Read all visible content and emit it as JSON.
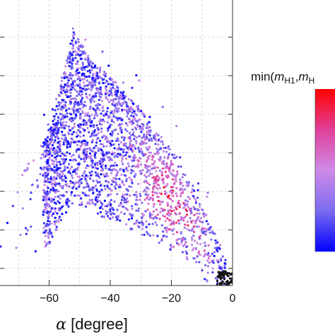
{
  "chart_data": {
    "type": "scatter",
    "xlabel_symbol": "α",
    "xlabel_unit": " [degree]",
    "ylabel": "",
    "xlim": [
      -80,
      0
    ],
    "x_ticks": [
      -60,
      -40,
      -20,
      0
    ],
    "x_tick_labels": [
      "−60",
      "−40",
      "−20",
      "0"
    ],
    "grid": true,
    "colorbar": {
      "title_prefix": "min(",
      "title_var1": "m",
      "title_sub1": "H1",
      "title_sep": ",",
      "title_var2": "m",
      "title_sub2": "H",
      "colors": [
        "#0000ff",
        "#7b6cf0",
        "#cf8ae8",
        "#e0409a",
        "#ff0000"
      ]
    },
    "series": [
      {
        "points": [
          [
            0,
            0.0
          ],
          [
            -2,
            0.06
          ],
          [
            -4,
            0.1
          ],
          [
            -6,
            0.16
          ],
          [
            -8,
            0.2
          ],
          [
            -10,
            0.26
          ],
          [
            -12,
            0.3
          ],
          [
            -14,
            0.34
          ],
          [
            -16,
            0.38
          ],
          [
            -18,
            0.42
          ],
          [
            -20,
            0.45
          ],
          [
            -22,
            0.48
          ],
          [
            -24,
            0.5
          ],
          [
            -26,
            0.52
          ],
          [
            -28,
            0.56
          ],
          [
            -30,
            0.59
          ],
          [
            -33,
            0.62
          ],
          [
            -36,
            0.66
          ],
          [
            -40,
            0.7
          ],
          [
            -45,
            0.75
          ],
          [
            -52,
            0.86
          ],
          [
            -60,
            0.5
          ],
          [
            -70,
            0.35
          ],
          [
            -78,
            0.38
          ]
        ]
      }
    ]
  },
  "icons": {
    "colorbar": "colorbar-gradient"
  }
}
